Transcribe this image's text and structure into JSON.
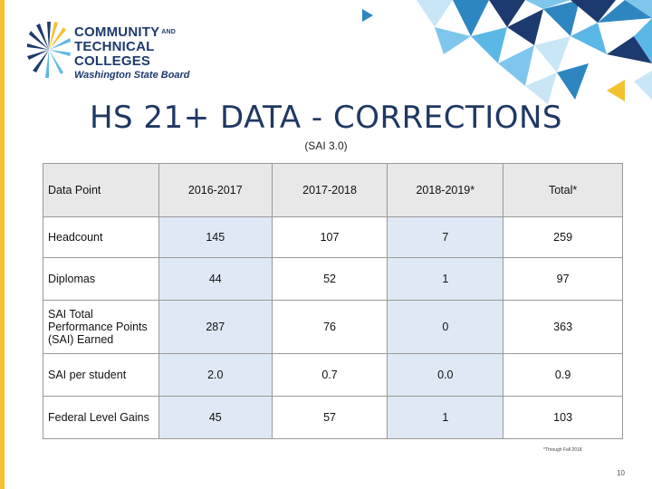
{
  "logo": {
    "line1": "COMMUNITY",
    "line1_suffix": "AND",
    "line2": "TECHNICAL COLLEGES",
    "line3": "Washington State Board"
  },
  "title": "HS 21+ DATA - CORRECTIONS",
  "subtitle": "(SAI 3.0)",
  "table": {
    "headers": [
      "Data Point",
      "2016-2017",
      "2017-2018",
      "2018-2019*",
      "Total*"
    ],
    "rows": [
      {
        "label": "Headcount",
        "values": [
          "145",
          "107",
          "7",
          "259"
        ]
      },
      {
        "label": "Diplomas",
        "values": [
          "44",
          "52",
          "1",
          "97"
        ]
      },
      {
        "label": "SAI Total Performance Points (SAI) Earned",
        "values": [
          "287",
          "76",
          "0",
          "363"
        ]
      },
      {
        "label": "SAI per student",
        "values": [
          "2.0",
          "0.7",
          "0.0",
          "0.9"
        ]
      },
      {
        "label": "Federal Level Gains",
        "values": [
          "45",
          "57",
          "1",
          "103"
        ]
      }
    ]
  },
  "footnote": "*Through Fall 2018",
  "page_number": "10",
  "colors": {
    "accent_bar": "#f2c230",
    "title": "#1f3864",
    "cell_blue": "#dfe9f5",
    "header_gray": "#e8e8e8"
  }
}
